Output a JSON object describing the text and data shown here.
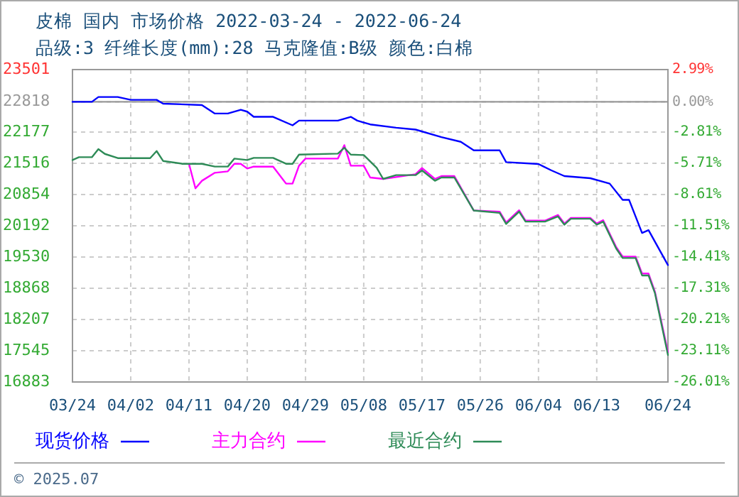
{
  "chart_data": {
    "type": "line",
    "title": "皮棉 国内 市场价格 2022-03-24 - 2022-06-24",
    "subtitle": "品级:3 纤维长度(mm):28 马克隆值:B级 颜色:白棉",
    "annotations": [
      "© 2025.07"
    ],
    "xlim": [
      "2022-03-24",
      "2022-06-24"
    ],
    "xticks": [
      {
        "value": "2022-03-24",
        "label": "03/24"
      },
      {
        "value": "2022-04-02",
        "label": "04/02"
      },
      {
        "value": "2022-04-11",
        "label": "04/11"
      },
      {
        "value": "2022-04-20",
        "label": "04/20"
      },
      {
        "value": "2022-04-29",
        "label": "04/29"
      },
      {
        "value": "2022-05-08",
        "label": "05/08"
      },
      {
        "value": "2022-05-17",
        "label": "05/17"
      },
      {
        "value": "2022-05-26",
        "label": "05/26"
      },
      {
        "value": "2022-06-04",
        "label": "06/04"
      },
      {
        "value": "2022-06-13",
        "label": "06/13"
      },
      {
        "value": "2022-06-24",
        "label": "06/24"
      }
    ],
    "ylim": [
      16883,
      23501
    ],
    "yticks": [
      16883,
      17545,
      18207,
      18868,
      19530,
      20192,
      20854,
      21516,
      22177,
      22818,
      23501
    ],
    "y2lim": [
      -26.01,
      2.99
    ],
    "y2ticks": [
      {
        "value": -26.01,
        "label": "-26.01%"
      },
      {
        "value": -23.11,
        "label": "-23.11%"
      },
      {
        "value": -20.21,
        "label": "-20.21%"
      },
      {
        "value": -17.31,
        "label": "-17.31%"
      },
      {
        "value": -14.41,
        "label": "-14.41%"
      },
      {
        "value": -11.51,
        "label": "-11.51%"
      },
      {
        "value": -8.61,
        "label": "-8.61%"
      },
      {
        "value": -5.71,
        "label": "-5.71%"
      },
      {
        "value": -2.81,
        "label": "-2.81%"
      },
      {
        "value": 0,
        "label": "0.00%"
      },
      {
        "value": 2.99,
        "label": "2.99%"
      }
    ],
    "ref_lines": [
      {
        "axis": "y",
        "value": 22818,
        "color": "#999999"
      }
    ],
    "grid": true,
    "legend": "bottom",
    "line_style": "solid",
    "marker": "none",
    "series": [
      {
        "name": "现货价格",
        "color": "#0000ff",
        "x": [
          "2022-03-24",
          "2022-03-27",
          "2022-03-28",
          "2022-03-31",
          "2022-04-02",
          "2022-04-06",
          "2022-04-07",
          "2022-04-13",
          "2022-04-15",
          "2022-04-17",
          "2022-04-19",
          "2022-04-20",
          "2022-04-21",
          "2022-04-24",
          "2022-04-27",
          "2022-04-28",
          "2022-05-04",
          "2022-05-06",
          "2022-05-07",
          "2022-05-09",
          "2022-05-13",
          "2022-05-16",
          "2022-05-20",
          "2022-05-23",
          "2022-05-25",
          "2022-05-29",
          "2022-05-30",
          "2022-06-04",
          "2022-06-06",
          "2022-06-08",
          "2022-06-12",
          "2022-06-15",
          "2022-06-17",
          "2022-06-18",
          "2022-06-20",
          "2022-06-21",
          "2022-06-24"
        ],
        "values": [
          22818,
          22818,
          22920,
          22920,
          22860,
          22860,
          22780,
          22750,
          22570,
          22570,
          22650,
          22610,
          22500,
          22500,
          22320,
          22420,
          22420,
          22500,
          22420,
          22340,
          22270,
          22230,
          22070,
          21970,
          21790,
          21790,
          21540,
          21500,
          21365,
          21245,
          21200,
          21085,
          20740,
          20740,
          20040,
          20100,
          19360
        ]
      },
      {
        "name": "主力合约",
        "color": "#ff00ff",
        "x": [
          "2022-04-11",
          "2022-04-12",
          "2022-04-13",
          "2022-04-15",
          "2022-04-17",
          "2022-04-18",
          "2022-04-19",
          "2022-04-20",
          "2022-04-21",
          "2022-04-24",
          "2022-04-26",
          "2022-04-27",
          "2022-04-28",
          "2022-04-29",
          "2022-05-04",
          "2022-05-05",
          "2022-05-06",
          "2022-05-08",
          "2022-05-09",
          "2022-05-11",
          "2022-05-16",
          "2022-05-17",
          "2022-05-19",
          "2022-05-20",
          "2022-05-22",
          "2022-05-25",
          "2022-05-29",
          "2022-05-30",
          "2022-06-01",
          "2022-06-02",
          "2022-06-05",
          "2022-06-07",
          "2022-06-08",
          "2022-06-09",
          "2022-06-12",
          "2022-06-13",
          "2022-06-14",
          "2022-06-16",
          "2022-06-17",
          "2022-06-19",
          "2022-06-20",
          "2022-06-21",
          "2022-06-22",
          "2022-06-24"
        ],
        "values": [
          21505,
          20985,
          21145,
          21315,
          21345,
          21505,
          21505,
          21405,
          21445,
          21445,
          21085,
          21085,
          21465,
          21615,
          21615,
          21900,
          21465,
          21465,
          21215,
          21185,
          21285,
          21415,
          21185,
          21245,
          21245,
          20515,
          20490,
          20260,
          20520,
          20300,
          20300,
          20420,
          20240,
          20360,
          20360,
          20240,
          20310,
          19740,
          19540,
          19540,
          19180,
          19180,
          18790,
          17515
        ]
      },
      {
        "name": "最近合约",
        "color": "#2e8b57",
        "x": [
          "2022-03-24",
          "2022-03-25",
          "2022-03-27",
          "2022-03-28",
          "2022-03-29",
          "2022-03-31",
          "2022-04-05",
          "2022-04-06",
          "2022-04-07",
          "2022-04-10",
          "2022-04-13",
          "2022-04-15",
          "2022-04-17",
          "2022-04-18",
          "2022-04-20",
          "2022-04-21",
          "2022-04-24",
          "2022-04-26",
          "2022-04-27",
          "2022-04-28",
          "2022-05-04",
          "2022-05-05",
          "2022-05-06",
          "2022-05-08",
          "2022-05-10",
          "2022-05-11",
          "2022-05-13",
          "2022-05-16",
          "2022-05-17",
          "2022-05-19",
          "2022-05-20",
          "2022-05-22",
          "2022-05-25",
          "2022-05-29",
          "2022-05-30",
          "2022-06-01",
          "2022-06-02",
          "2022-06-05",
          "2022-06-07",
          "2022-06-08",
          "2022-06-09",
          "2022-06-12",
          "2022-06-13",
          "2022-06-14",
          "2022-06-16",
          "2022-06-17",
          "2022-06-19",
          "2022-06-20",
          "2022-06-21",
          "2022-06-22",
          "2022-06-24"
        ],
        "values": [
          21585,
          21645,
          21645,
          21816,
          21715,
          21625,
          21625,
          21775,
          21565,
          21505,
          21505,
          21446,
          21446,
          21615,
          21585,
          21630,
          21630,
          21505,
          21505,
          21700,
          21720,
          21845,
          21700,
          21690,
          21420,
          21185,
          21265,
          21265,
          21365,
          21145,
          21215,
          21215,
          20515,
          20465,
          20230,
          20490,
          20280,
          20280,
          20390,
          20215,
          20340,
          20340,
          20215,
          20280,
          19710,
          19510,
          19510,
          19140,
          19140,
          18760,
          17455
        ]
      }
    ]
  }
}
